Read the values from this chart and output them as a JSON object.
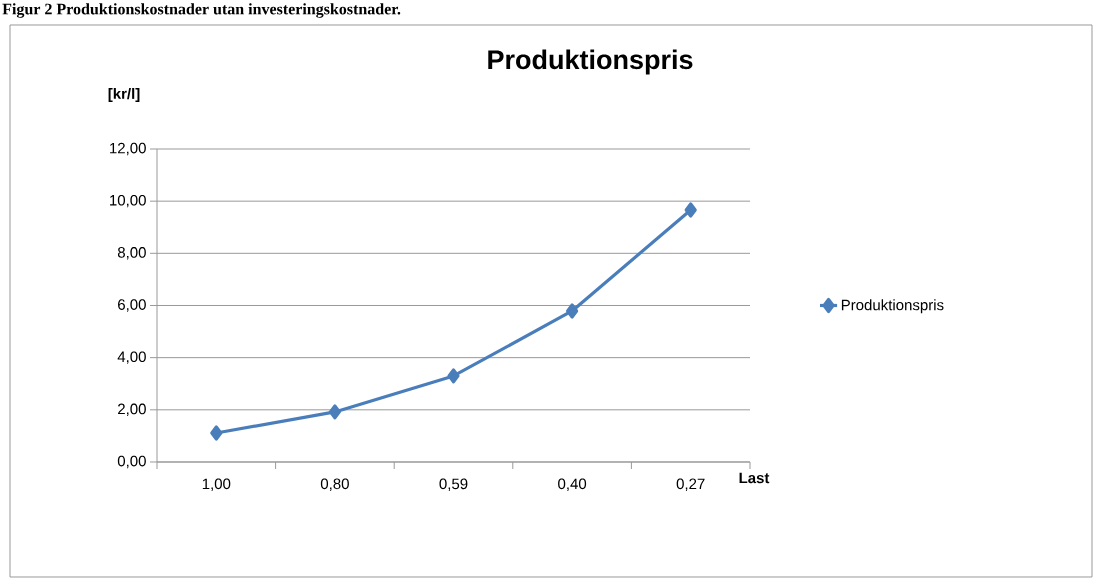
{
  "chart_data": {
    "type": "line",
    "title": "Produktionspris",
    "ylabel": "[kr/l]",
    "xlabel": "Last",
    "annotations": [
      "Figur 2 Produktionskostnader utan investeringskostnader."
    ],
    "categories": [
      "1,00",
      "0,80",
      "0,59",
      "0,40",
      "0,27"
    ],
    "series": [
      {
        "name": "Produktionspris",
        "color": "#4a7ebb",
        "values": [
          1.11,
          1.92,
          3.3,
          5.79,
          9.66
        ]
      }
    ],
    "ylim": [
      0,
      12
    ],
    "yticks": [
      {
        "value": 0,
        "label": "0,00"
      },
      {
        "value": 2,
        "label": "2,00"
      },
      {
        "value": 4,
        "label": "4,00"
      },
      {
        "value": 6,
        "label": "6,00"
      },
      {
        "value": 8,
        "label": "8,00"
      },
      {
        "value": 10,
        "label": "10,00"
      },
      {
        "value": 12,
        "label": "12,00"
      }
    ],
    "grid": "y",
    "legend": "right",
    "marker": "diamond",
    "line_style": "solid"
  }
}
